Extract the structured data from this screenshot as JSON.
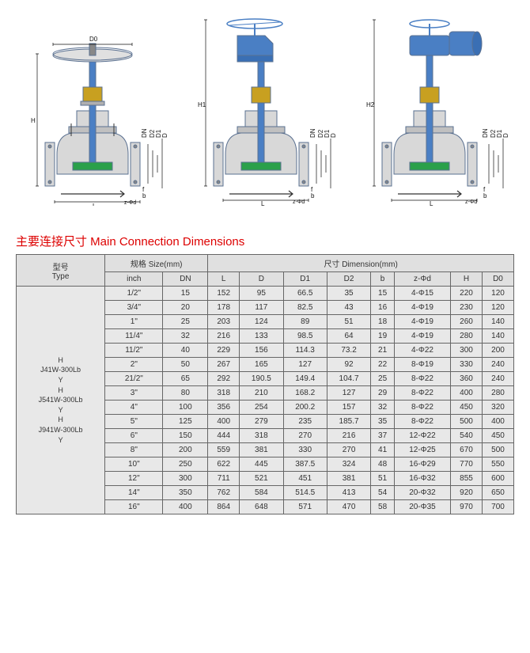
{
  "title": "主要连接尺寸 Main Connection Dimensions",
  "diagrams": {
    "labels": {
      "h": "H",
      "h1": "H1",
      "h2": "H2",
      "d0": "D0",
      "l": "L",
      "dn": "DN",
      "d": "D",
      "d1": "D1",
      "d2": "D2",
      "f": "f",
      "b": "b",
      "zphi": "z-Φd"
    },
    "colors": {
      "body": "#d0d0d0",
      "stem": "#4a7fc4",
      "accent": "#2aa04a",
      "outline": "#5a7090",
      "arrow": "#111"
    }
  },
  "table": {
    "headers": {
      "type": "型号\nType",
      "size": "规格 Size(mm)",
      "dim": "尺寸 Dimension(mm)",
      "inch": "inch",
      "dn": "DN",
      "l": "L",
      "d": "D",
      "d1": "D1",
      "d2": "D2",
      "b": "b",
      "zphi": "z-Φd",
      "h": "H",
      "d0": "D0"
    },
    "type_label": "H\nJ41W-300Lb\nY\nH\nJ541W-300Lb\nY\nH\nJ941W-300Lb\nY",
    "rows": [
      {
        "inch": "1/2\"",
        "dn": "15",
        "l": "152",
        "d": "95",
        "d1": "66.5",
        "d2": "35",
        "b": "15",
        "z": "4-Φ15",
        "h": "220",
        "d0": "120"
      },
      {
        "inch": "3/4\"",
        "dn": "20",
        "l": "178",
        "d": "117",
        "d1": "82.5",
        "d2": "43",
        "b": "16",
        "z": "4-Φ19",
        "h": "230",
        "d0": "120"
      },
      {
        "inch": "1\"",
        "dn": "25",
        "l": "203",
        "d": "124",
        "d1": "89",
        "d2": "51",
        "b": "18",
        "z": "4-Φ19",
        "h": "260",
        "d0": "140"
      },
      {
        "inch": "11/4\"",
        "dn": "32",
        "l": "216",
        "d": "133",
        "d1": "98.5",
        "d2": "64",
        "b": "19",
        "z": "4-Φ19",
        "h": "280",
        "d0": "140"
      },
      {
        "inch": "11/2\"",
        "dn": "40",
        "l": "229",
        "d": "156",
        "d1": "114.3",
        "d2": "73.2",
        "b": "21",
        "z": "4-Φ22",
        "h": "300",
        "d0": "200"
      },
      {
        "inch": "2\"",
        "dn": "50",
        "l": "267",
        "d": "165",
        "d1": "127",
        "d2": "92",
        "b": "22",
        "z": "8-Φ19",
        "h": "330",
        "d0": "240"
      },
      {
        "inch": "21/2\"",
        "dn": "65",
        "l": "292",
        "d": "190.5",
        "d1": "149.4",
        "d2": "104.7",
        "b": "25",
        "z": "8-Φ22",
        "h": "360",
        "d0": "240"
      },
      {
        "inch": "3\"",
        "dn": "80",
        "l": "318",
        "d": "210",
        "d1": "168.2",
        "d2": "127",
        "b": "29",
        "z": "8-Φ22",
        "h": "400",
        "d0": "280"
      },
      {
        "inch": "4\"",
        "dn": "100",
        "l": "356",
        "d": "254",
        "d1": "200.2",
        "d2": "157",
        "b": "32",
        "z": "8-Φ22",
        "h": "450",
        "d0": "320"
      },
      {
        "inch": "5\"",
        "dn": "125",
        "l": "400",
        "d": "279",
        "d1": "235",
        "d2": "185.7",
        "b": "35",
        "z": "8-Φ22",
        "h": "500",
        "d0": "400"
      },
      {
        "inch": "6\"",
        "dn": "150",
        "l": "444",
        "d": "318",
        "d1": "270",
        "d2": "216",
        "b": "37",
        "z": "12-Φ22",
        "h": "540",
        "d0": "450"
      },
      {
        "inch": "8\"",
        "dn": "200",
        "l": "559",
        "d": "381",
        "d1": "330",
        "d2": "270",
        "b": "41",
        "z": "12-Φ25",
        "h": "670",
        "d0": "500"
      },
      {
        "inch": "10\"",
        "dn": "250",
        "l": "622",
        "d": "445",
        "d1": "387.5",
        "d2": "324",
        "b": "48",
        "z": "16-Φ29",
        "h": "770",
        "d0": "550"
      },
      {
        "inch": "12\"",
        "dn": "300",
        "l": "711",
        "d": "521",
        "d1": "451",
        "d2": "381",
        "b": "51",
        "z": "16-Φ32",
        "h": "855",
        "d0": "600"
      },
      {
        "inch": "14\"",
        "dn": "350",
        "l": "762",
        "d": "584",
        "d1": "514.5",
        "d2": "413",
        "b": "54",
        "z": "20-Φ32",
        "h": "920",
        "d0": "650"
      },
      {
        "inch": "16\"",
        "dn": "400",
        "l": "864",
        "d": "648",
        "d1": "571",
        "d2": "470",
        "b": "58",
        "z": "20-Φ35",
        "h": "970",
        "d0": "700"
      }
    ]
  }
}
